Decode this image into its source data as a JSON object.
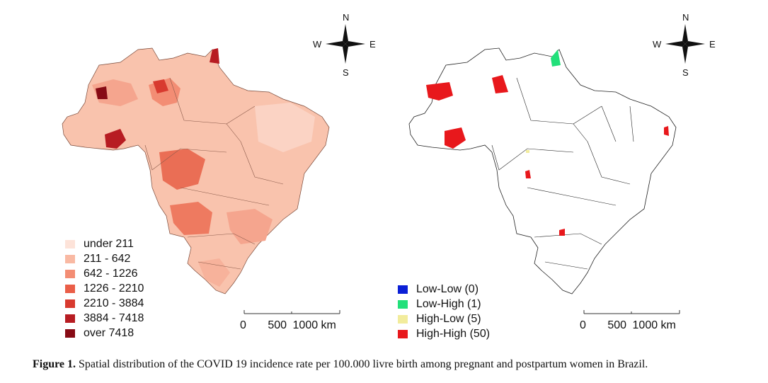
{
  "left_map": {
    "compass": {
      "n": "N",
      "s": "S",
      "e": "E",
      "w": "W"
    },
    "legend": [
      {
        "label": "under 211",
        "color": "#fde3d9"
      },
      {
        "label": "211 - 642",
        "color": "#f9b9a3"
      },
      {
        "label": "642 - 1226",
        "color": "#f38d74"
      },
      {
        "label": "1226 - 2210",
        "color": "#ea5e48"
      },
      {
        "label": "2210 - 3884",
        "color": "#d83a2f"
      },
      {
        "label": "3884 - 7418",
        "color": "#b71c22"
      },
      {
        "label": "over 7418",
        "color": "#870b15"
      }
    ],
    "scale": {
      "zero": "0",
      "mid": "500",
      "end": "1000 km"
    }
  },
  "right_map": {
    "compass": {
      "n": "N",
      "s": "S",
      "e": "E",
      "w": "W"
    },
    "legend": [
      {
        "label": "Low-Low (0)",
        "color": "#0b1fd6"
      },
      {
        "label": "Low-High (1)",
        "color": "#22e07a"
      },
      {
        "label": "High-Low (5)",
        "color": "#f2ec9c"
      },
      {
        "label": "High-High (50)",
        "color": "#e8181c"
      }
    ],
    "scale": {
      "zero": "0",
      "mid": "500",
      "end": "1000 km"
    }
  },
  "caption": {
    "label": "Figure 1.",
    "text": "Spatial distribution of the COVID 19 incidence rate per 100.000 livre birth among pregnant and postpartum women in Brazil."
  }
}
